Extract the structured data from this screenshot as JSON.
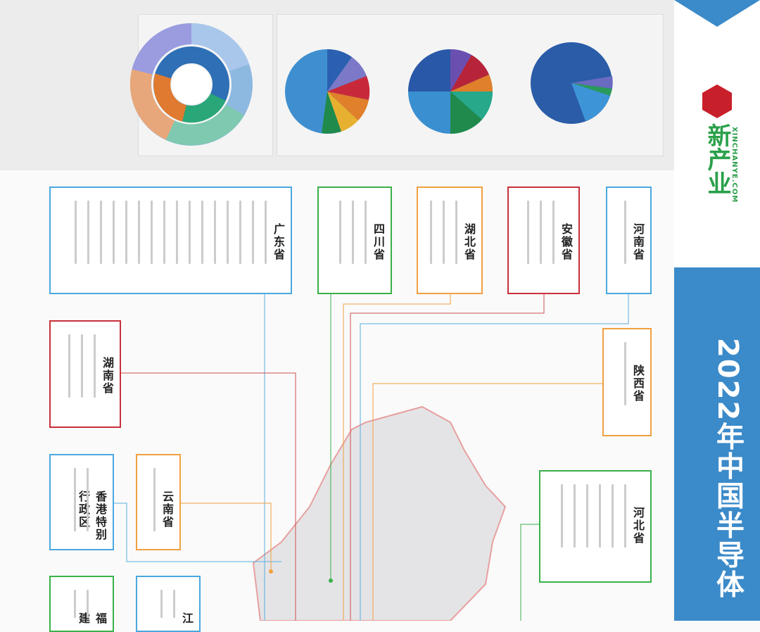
{
  "header": {
    "title": "2022年中国半导体",
    "logo_text": "新产业",
    "logo_url": "XINCHANYE.COM"
  },
  "provinces": [
    {
      "name": "广东省"
    },
    {
      "name": "四川省"
    },
    {
      "name": "湖北省"
    },
    {
      "name": "安徽省"
    },
    {
      "name": "河南省"
    },
    {
      "name": "湖南省"
    },
    {
      "name": "陕西省"
    },
    {
      "name": "香港特别行政区"
    },
    {
      "name": "云南省"
    },
    {
      "name": "河北省"
    },
    {
      "name": "福建"
    },
    {
      "name": "江"
    }
  ]
}
